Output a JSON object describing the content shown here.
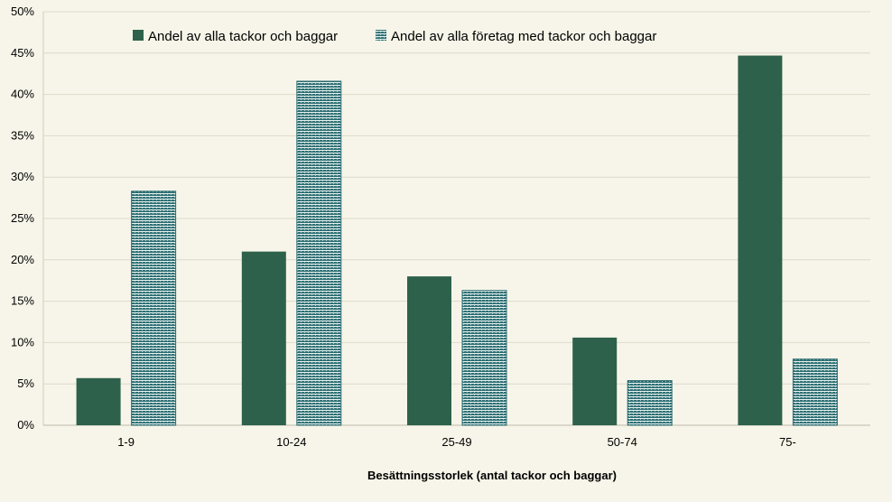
{
  "chart_data": {
    "type": "bar",
    "categories": [
      "1-9",
      "10-24",
      "25-49",
      "50-74",
      "75-"
    ],
    "series": [
      {
        "name": "Andel av alla tackor och baggar",
        "values": [
          5.7,
          21.0,
          18.0,
          10.6,
          44.7
        ],
        "color": "#2d614b",
        "pattern": "solid"
      },
      {
        "name": "Andel av alla företag med tackor och baggar",
        "values": [
          28.3,
          41.6,
          16.3,
          5.4,
          8.0
        ],
        "color": "#2e6f74",
        "pattern": "hatched"
      }
    ],
    "xlabel": "Besättningsstorlek (antal tackor och baggar)",
    "ylabel": "",
    "ylim": [
      0,
      50
    ],
    "yticks": [
      "0%",
      "5%",
      "10%",
      "15%",
      "20%",
      "25%",
      "30%",
      "35%",
      "40%",
      "45%",
      "50%"
    ],
    "grid": true,
    "legend_position": "top"
  }
}
